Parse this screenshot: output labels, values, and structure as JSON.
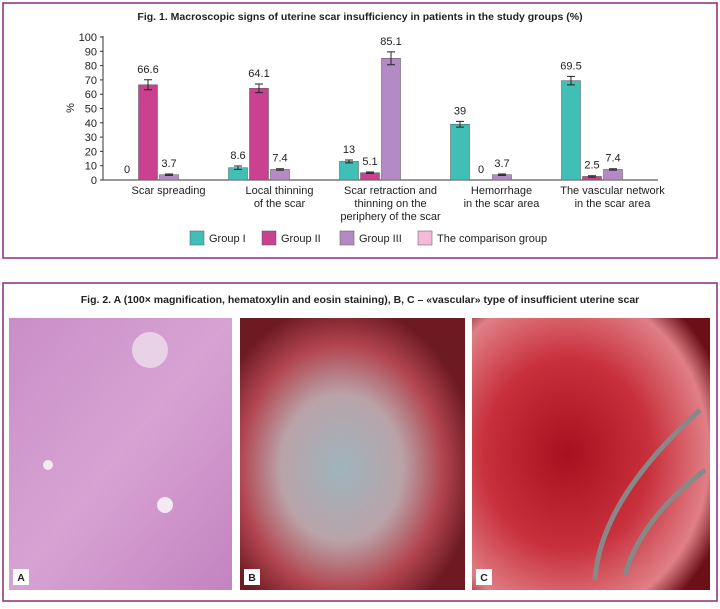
{
  "chart_data": {
    "type": "bar",
    "title": "Fig. 1. Macroscopic signs of uterine scar insufficiency in patients in the study groups (%)",
    "y_label": "%",
    "categories": [
      "Scar spreading",
      "Local thinning\nof the scar",
      "Scar retraction and\nthinning on the\nperiphery of the scar",
      "Hemorrhage\nin the scar area",
      "The vascular network\nin the scar area"
    ],
    "series": [
      {
        "name": "Group I",
        "color": "#3fbfb6",
        "values": [
          0,
          8.6,
          13,
          39,
          69.5
        ],
        "errors": [
          0,
          1.2,
          1,
          2,
          3
        ]
      },
      {
        "name": "Group II",
        "color": "#c9418f",
        "values": [
          66.6,
          64.1,
          5.1,
          0,
          2.5
        ],
        "errors": [
          3.5,
          3,
          0.5,
          0,
          0.5
        ]
      },
      {
        "name": "Group III",
        "color": "#b48ac4",
        "values": [
          3.7,
          7.4,
          85.1,
          3.7,
          7.4
        ],
        "errors": [
          0.5,
          0.5,
          4.5,
          0.5,
          0.5
        ]
      },
      {
        "name": "The comparison group",
        "color": "#f2b9d9",
        "values": [
          null,
          null,
          null,
          null,
          null
        ],
        "errors": [
          null,
          null,
          null,
          null,
          null
        ]
      }
    ],
    "ylim": [
      0,
      100
    ],
    "yticks": [
      0,
      10,
      20,
      30,
      40,
      50,
      60,
      70,
      80,
      90,
      100
    ],
    "legend": "bottom",
    "grid": false
  },
  "figure2": {
    "caption": "Fig. 2. A (100× magnification, hematoxylin and eosin staining), B, C – «vascular» type of insufficient uterine scar",
    "panels": [
      "A",
      "B",
      "C"
    ]
  }
}
